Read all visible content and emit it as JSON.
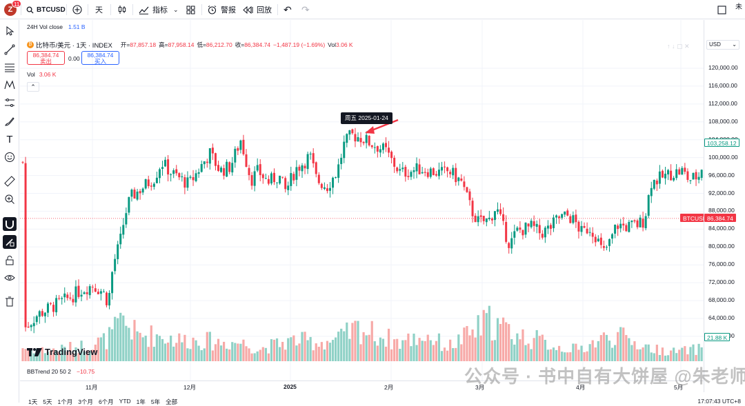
{
  "toolbar": {
    "avatar_letter": "Z",
    "avatar_badge": "11",
    "symbol": "BTCUSD",
    "interval": "天",
    "indicators": "指标",
    "alerts": "警报",
    "replay": "回放",
    "right_text": "未"
  },
  "chart_header": {
    "vol_close_label": "24H Vol close",
    "vol_close_value": "1.51 B",
    "title": "比特币/美元 · 1天 · INDEX",
    "open_label": "开=",
    "open_value": "87,857.18",
    "high_label": "高=",
    "high_value": "87,958.14",
    "low_label": "低=",
    "low_value": "86,212.70",
    "close_label": "收=",
    "close_value": "86,384.74",
    "change": "−1,487.19 (−1.69%)",
    "vol_label": "Vol",
    "vol_value": "3.06 K",
    "sell_price": "86,384.74",
    "sell_label": "卖出",
    "spread": "0.00",
    "buy_price": "86,384.74",
    "buy_label": "买入",
    "vol2_label": "Vol",
    "vol2_value": "3.06 K",
    "currency": "USD"
  },
  "tooltip": "周五 2025-01-24",
  "price_axis": [
    "120,000.00",
    "116,000.00",
    "112,000.00",
    "108,000.00",
    "104,000.00",
    "100,000.00",
    "96,000.00",
    "92,000.00",
    "88,000.00",
    "84,000.00",
    "80,000.00",
    "76,000.00",
    "72,000.00",
    "68,000.00",
    "64,000.00",
    "60,000.00"
  ],
  "price_tags": {
    "high_tag": "103,258.12",
    "symbol_tag": "BTCUSD",
    "last_tag": "86,384.74",
    "vol_tag": "21.88 K"
  },
  "time_axis": [
    "11月",
    "12月",
    "2025",
    "2月",
    "3月",
    "4月",
    "5月"
  ],
  "indicator": {
    "label": "BBTrend 20 50 2",
    "value": "−10.75"
  },
  "logo_text": "TradingView",
  "bottom": {
    "ranges": [
      "1天",
      "5天",
      "1个月",
      "3个月",
      "6个月",
      "YTD",
      "1年",
      "5年",
      "全部"
    ],
    "time": "17:07:43 UTC+8"
  },
  "watermark": "公众号 · 书中自有大饼屋 @朱老师区块链",
  "colors": {
    "up": "#089981",
    "down": "#f23645",
    "up_vol": "#8fd1c6",
    "down_vol": "#f7a9a7",
    "accent": "#2962ff"
  }
}
